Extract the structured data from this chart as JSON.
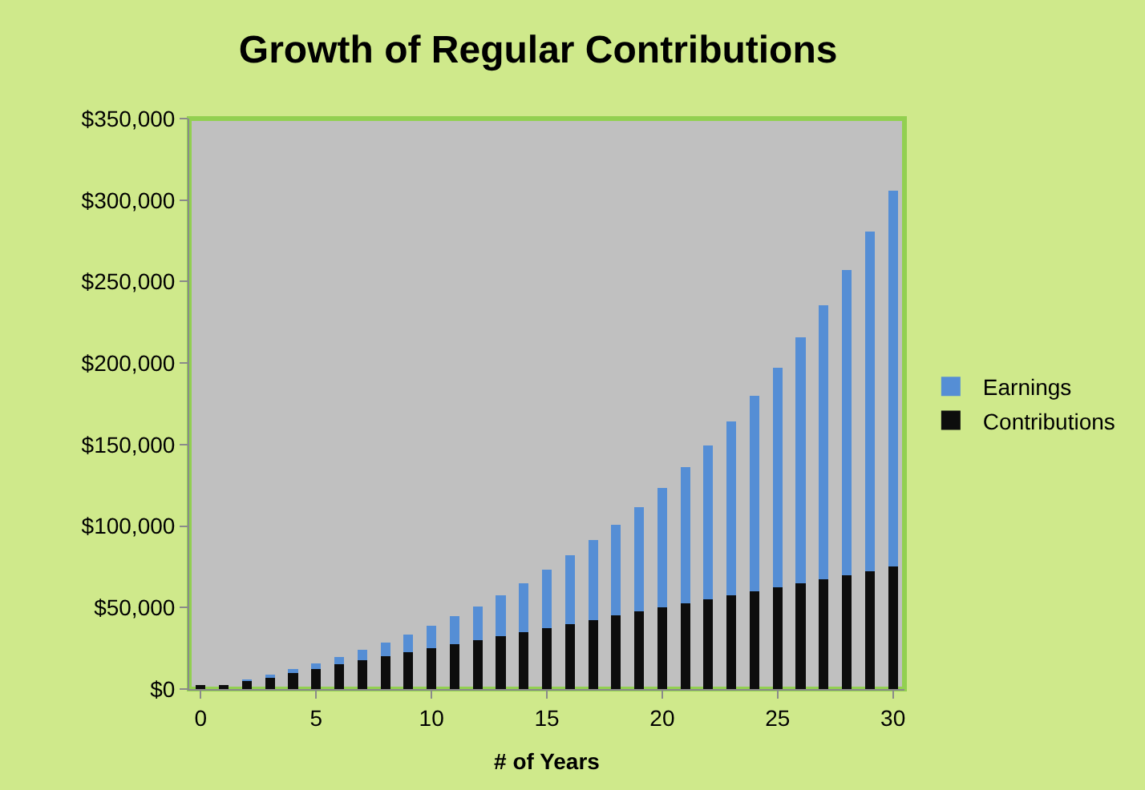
{
  "chart_data": {
    "type": "bar",
    "title": "Growth of Regular Contributions",
    "xlabel": "# of Years",
    "stacked": true,
    "x": [
      0,
      1,
      2,
      3,
      4,
      5,
      6,
      7,
      8,
      9,
      10,
      11,
      12,
      13,
      14,
      15,
      16,
      17,
      18,
      19,
      20,
      21,
      22,
      23,
      24,
      25,
      26,
      27,
      28,
      29,
      30
    ],
    "series": [
      {
        "name": "Contributions",
        "color": "#0d0d0d",
        "values": [
          2500,
          2500,
          5000,
          7500,
          10000,
          12500,
          15000,
          17500,
          20000,
          22500,
          25000,
          27500,
          30000,
          32500,
          35000,
          37500,
          40000,
          42500,
          45000,
          47500,
          50000,
          52500,
          55000,
          57500,
          60000,
          62500,
          65000,
          67500,
          70000,
          72500,
          75000
        ]
      },
      {
        "name": "Earnings",
        "color": "#558ed5",
        "values": [
          0,
          0,
          200,
          1100,
          2200,
          3000,
          4700,
          6500,
          8300,
          11000,
          13800,
          17200,
          20700,
          25100,
          30100,
          35900,
          42000,
          48700,
          56000,
          64100,
          73500,
          83500,
          94500,
          106800,
          120000,
          134500,
          150700,
          167900,
          187200,
          208000,
          230600
        ]
      }
    ],
    "xlim": [
      -0.5,
      30.5
    ],
    "xticks": [
      0,
      5,
      10,
      15,
      20,
      25,
      30
    ],
    "ylim": [
      0,
      350000
    ],
    "yticks": [
      {
        "value": 0,
        "label": "$0"
      },
      {
        "value": 50000,
        "label": "$50,000"
      },
      {
        "value": 100000,
        "label": "$100,000"
      },
      {
        "value": 150000,
        "label": "$150,000"
      },
      {
        "value": 200000,
        "label": "$200,000"
      },
      {
        "value": 250000,
        "label": "$250,000"
      },
      {
        "value": 300000,
        "label": "$300,000"
      },
      {
        "value": 350000,
        "label": "$350,000"
      }
    ],
    "grid": false,
    "legend": "right"
  }
}
